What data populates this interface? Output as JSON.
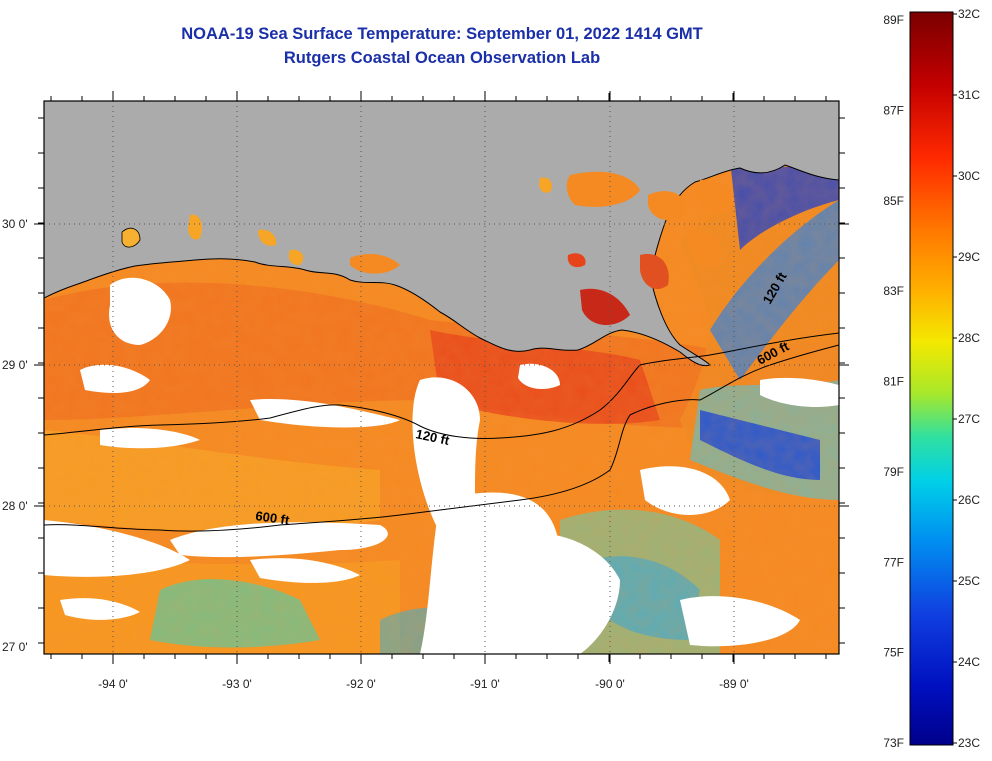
{
  "header": {
    "title": "NOAA-19 Sea Surface Temperature:  September 01, 2022 1414 GMT",
    "subtitle": "Rutgers Coastal Ocean Observation Lab"
  },
  "map": {
    "lon_labels": [
      "-94 0'",
      "-93 0'",
      "-92 0'",
      "-91 0'",
      "-90 0'",
      "-89 0'"
    ],
    "lat_labels": [
      "30 0'",
      "29 0'",
      "28 0'",
      "27 0'"
    ],
    "contour_labels": [
      "120 ft",
      "600 ft",
      "120 ft",
      "600 ft"
    ]
  },
  "colorbar": {
    "fahrenheit_labels": [
      "89F",
      "87F",
      "85F",
      "83F",
      "81F",
      "79F",
      "77F",
      "75F",
      "73F"
    ],
    "celsius_labels": [
      "32C",
      "31C",
      "30C",
      "29C",
      "28C",
      "27C",
      "26C",
      "25C",
      "24C",
      "23C"
    ]
  },
  "colors": {
    "title": "#1a2fa8",
    "land": "#ababab",
    "cloud": "#ffffff",
    "warm_water": "#f57d1f",
    "hot_water": "#e8441c",
    "cool_water": "#1f4fd8"
  }
}
